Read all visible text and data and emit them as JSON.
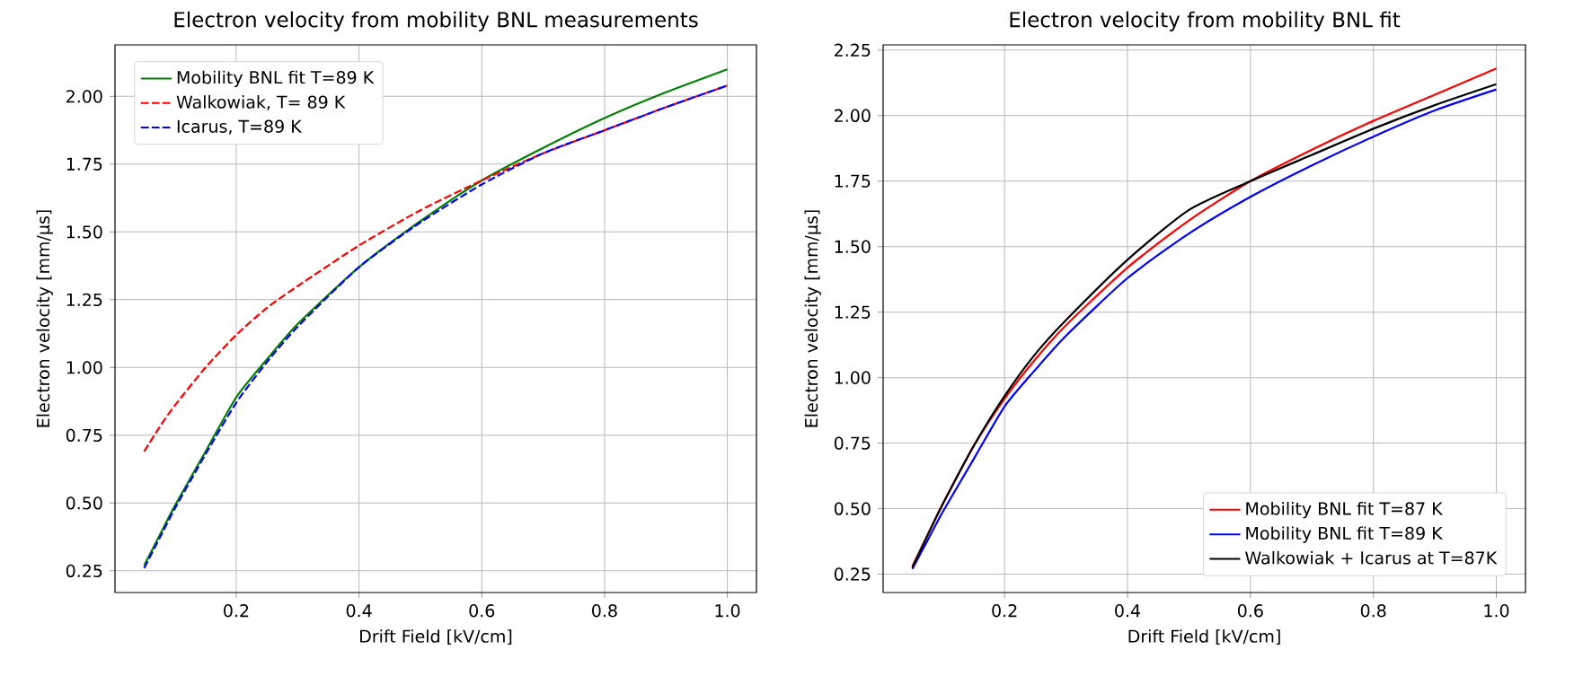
{
  "chart_data": [
    {
      "type": "line",
      "title": "Electron velocity from mobility BNL measurements",
      "xlabel": "Drift Field [kV/cm]",
      "ylabel": "Electron velocity [mm/μs]",
      "xlim": [
        0.0025,
        1.0475
      ],
      "ylim": [
        0.17,
        2.19
      ],
      "xticks": [
        0.2,
        0.4,
        0.6,
        0.8,
        {
          "value": 1.0,
          "label": "1.0"
        }
      ],
      "yticks": [
        {
          "value": 0.25,
          "label": "0.25"
        },
        {
          "value": 0.5,
          "label": "0.50"
        },
        {
          "value": 0.75,
          "label": "0.75"
        },
        {
          "value": 1.0,
          "label": "1.00"
        },
        {
          "value": 1.25,
          "label": "1.25"
        },
        {
          "value": 1.5,
          "label": "1.50"
        },
        {
          "value": 1.75,
          "label": "1.75"
        },
        {
          "value": 2.0,
          "label": "2.00"
        }
      ],
      "grid": true,
      "legend": "top left",
      "x": [
        0.05,
        0.075,
        0.1,
        0.15,
        0.2,
        0.25,
        0.3,
        0.4,
        0.5,
        0.6,
        0.7,
        0.8,
        0.9,
        1.0
      ],
      "series": [
        {
          "name": "Mobility BNL fit T=89 K",
          "color": "#008000",
          "line_style": "solid",
          "values": [
            0.27,
            0.38,
            0.49,
            0.69,
            0.89,
            1.03,
            1.16,
            1.37,
            1.54,
            1.69,
            1.81,
            1.92,
            2.015,
            2.1
          ]
        },
        {
          "name": "Walkowiak, T= 89 K",
          "color": "#ff0000",
          "line_style": "dashed",
          "values": [
            0.69,
            0.78,
            0.86,
            1.0,
            1.12,
            1.22,
            1.3,
            1.45,
            1.58,
            1.69,
            1.79,
            1.875,
            1.96,
            2.04
          ]
        },
        {
          "name": "Icarus, T=89 K",
          "color": "#0000ff",
          "line_style": "dashed",
          "values": [
            0.26,
            0.37,
            0.48,
            0.68,
            0.87,
            1.02,
            1.15,
            1.37,
            1.535,
            1.675,
            1.79,
            1.875,
            1.96,
            2.04
          ]
        }
      ]
    },
    {
      "type": "line",
      "title": "Electron velocity from mobility BNL fit",
      "xlabel": "Drift Field [kV/cm]",
      "ylabel": "Electron velocity [mm/μs]",
      "xlim": [
        0.0025,
        1.0475
      ],
      "ylim": [
        0.18,
        2.27
      ],
      "xticks": [
        0.2,
        0.4,
        0.6,
        0.8,
        {
          "value": 1.0,
          "label": "1.0"
        }
      ],
      "yticks": [
        {
          "value": 0.25,
          "label": "0.25"
        },
        {
          "value": 0.5,
          "label": "0.50"
        },
        {
          "value": 0.75,
          "label": "0.75"
        },
        {
          "value": 1.0,
          "label": "1.00"
        },
        {
          "value": 1.25,
          "label": "1.25"
        },
        {
          "value": 1.5,
          "label": "1.50"
        },
        {
          "value": 1.75,
          "label": "1.75"
        },
        {
          "value": 2.0,
          "label": "2.00"
        },
        {
          "value": 2.25,
          "label": "2.25"
        }
      ],
      "grid": true,
      "legend": "bottom right",
      "x": [
        0.05,
        0.075,
        0.1,
        0.15,
        0.2,
        0.25,
        0.3,
        0.4,
        0.5,
        0.6,
        0.7,
        0.8,
        0.9,
        1.0
      ],
      "series": [
        {
          "name": "Mobility BNL fit T=87 K",
          "color": "#ff0000",
          "values": [
            0.28,
            0.4,
            0.52,
            0.74,
            0.92,
            1.07,
            1.2,
            1.42,
            1.6,
            1.75,
            1.87,
            1.98,
            2.08,
            2.18
          ]
        },
        {
          "name": "Mobility BNL fit T=89 K",
          "color": "#0000ff",
          "values": [
            0.27,
            0.38,
            0.49,
            0.69,
            0.89,
            1.03,
            1.16,
            1.38,
            1.55,
            1.69,
            1.81,
            1.92,
            2.02,
            2.1
          ]
        },
        {
          "name": "Walkowiak + Icarus at T=87K",
          "color": "#000000",
          "values": [
            0.275,
            0.4,
            0.52,
            0.74,
            0.93,
            1.09,
            1.22,
            1.45,
            1.64,
            1.75,
            1.85,
            1.95,
            2.04,
            2.12
          ]
        }
      ]
    }
  ]
}
